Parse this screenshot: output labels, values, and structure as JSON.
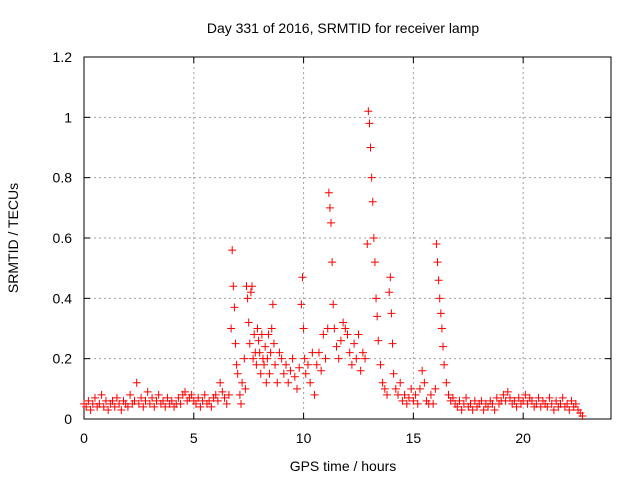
{
  "chart_data": {
    "type": "scatter",
    "title": "Day 331 of 2016, SRMTID for receiver lamp",
    "xlabel": "GPS time / hours",
    "ylabel": "SRMTID / TECUs",
    "xlim": [
      0,
      24
    ],
    "ylim": [
      0,
      1.2
    ],
    "xticks": [
      0,
      5,
      10,
      15,
      20
    ],
    "xtick_labels": [
      "0",
      "5",
      "10",
      "15",
      "20"
    ],
    "yticks": [
      0,
      0.2,
      0.4,
      0.6,
      0.8,
      1,
      1.2
    ],
    "ytick_labels": [
      "0",
      "0.2",
      "0.4",
      "0.6",
      "0.8",
      "1",
      "1.2"
    ],
    "grid": true,
    "marker": "+",
    "color": "#ff0000",
    "series": [
      {
        "name": "SRMTID",
        "points": [
          [
            0.0,
            0.05
          ],
          [
            0.1,
            0.04
          ],
          [
            0.2,
            0.06
          ],
          [
            0.3,
            0.03
          ],
          [
            0.4,
            0.05
          ],
          [
            0.5,
            0.07
          ],
          [
            0.6,
            0.04
          ],
          [
            0.7,
            0.05
          ],
          [
            0.8,
            0.08
          ],
          [
            0.9,
            0.04
          ],
          [
            1.0,
            0.06
          ],
          [
            1.1,
            0.03
          ],
          [
            1.2,
            0.05
          ],
          [
            1.3,
            0.06
          ],
          [
            1.4,
            0.04
          ],
          [
            1.5,
            0.07
          ],
          [
            1.6,
            0.05
          ],
          [
            1.7,
            0.03
          ],
          [
            1.8,
            0.06
          ],
          [
            1.9,
            0.05
          ],
          [
            2.0,
            0.04
          ],
          [
            2.1,
            0.08
          ],
          [
            2.2,
            0.05
          ],
          [
            2.3,
            0.06
          ],
          [
            2.4,
            0.12
          ],
          [
            2.5,
            0.05
          ],
          [
            2.6,
            0.07
          ],
          [
            2.7,
            0.04
          ],
          [
            2.8,
            0.06
          ],
          [
            2.9,
            0.09
          ],
          [
            3.0,
            0.05
          ],
          [
            3.1,
            0.07
          ],
          [
            3.2,
            0.04
          ],
          [
            3.3,
            0.06
          ],
          [
            3.4,
            0.08
          ],
          [
            3.5,
            0.05
          ],
          [
            3.6,
            0.06
          ],
          [
            3.7,
            0.04
          ],
          [
            3.8,
            0.07
          ],
          [
            3.9,
            0.05
          ],
          [
            4.0,
            0.06
          ],
          [
            4.1,
            0.04
          ],
          [
            4.2,
            0.05
          ],
          [
            4.3,
            0.07
          ],
          [
            4.4,
            0.05
          ],
          [
            4.5,
            0.08
          ],
          [
            4.6,
            0.09
          ],
          [
            4.7,
            0.06
          ],
          [
            4.8,
            0.07
          ],
          [
            4.9,
            0.08
          ],
          [
            5.0,
            0.06
          ],
          [
            5.1,
            0.05
          ],
          [
            5.2,
            0.07
          ],
          [
            5.3,
            0.04
          ],
          [
            5.4,
            0.06
          ],
          [
            5.5,
            0.08
          ],
          [
            5.6,
            0.05
          ],
          [
            5.7,
            0.06
          ],
          [
            5.8,
            0.04
          ],
          [
            5.9,
            0.07
          ],
          [
            6.0,
            0.08
          ],
          [
            6.1,
            0.06
          ],
          [
            6.2,
            0.12
          ],
          [
            6.3,
            0.09
          ],
          [
            6.4,
            0.07
          ],
          [
            6.5,
            0.05
          ],
          [
            6.6,
            0.08
          ],
          [
            6.7,
            0.3
          ],
          [
            6.75,
            0.56
          ],
          [
            6.8,
            0.44
          ],
          [
            6.85,
            0.37
          ],
          [
            6.9,
            0.25
          ],
          [
            6.95,
            0.18
          ],
          [
            7.0,
            0.15
          ],
          [
            7.1,
            0.08
          ],
          [
            7.15,
            0.05
          ],
          [
            7.2,
            0.12
          ],
          [
            7.3,
            0.2
          ],
          [
            7.35,
            0.1
          ],
          [
            7.4,
            0.44
          ],
          [
            7.45,
            0.4
          ],
          [
            7.5,
            0.32
          ],
          [
            7.55,
            0.25
          ],
          [
            7.6,
            0.42
          ],
          [
            7.65,
            0.44
          ],
          [
            7.7,
            0.2
          ],
          [
            7.75,
            0.28
          ],
          [
            7.8,
            0.22
          ],
          [
            7.85,
            0.18
          ],
          [
            7.9,
            0.3
          ],
          [
            7.95,
            0.26
          ],
          [
            8.0,
            0.22
          ],
          [
            8.05,
            0.15
          ],
          [
            8.1,
            0.28
          ],
          [
            8.15,
            0.2
          ],
          [
            8.2,
            0.18
          ],
          [
            8.25,
            0.24
          ],
          [
            8.3,
            0.12
          ],
          [
            8.35,
            0.2
          ],
          [
            8.4,
            0.28
          ],
          [
            8.45,
            0.15
          ],
          [
            8.5,
            0.22
          ],
          [
            8.55,
            0.3
          ],
          [
            8.6,
            0.38
          ],
          [
            8.65,
            0.25
          ],
          [
            8.7,
            0.18
          ],
          [
            8.8,
            0.12
          ],
          [
            8.9,
            0.22
          ],
          [
            9.0,
            0.2
          ],
          [
            9.1,
            0.15
          ],
          [
            9.2,
            0.18
          ],
          [
            9.3,
            0.12
          ],
          [
            9.4,
            0.16
          ],
          [
            9.5,
            0.2
          ],
          [
            9.6,
            0.14
          ],
          [
            9.7,
            0.1
          ],
          [
            9.8,
            0.17
          ],
          [
            9.9,
            0.38
          ],
          [
            9.95,
            0.47
          ],
          [
            10.0,
            0.3
          ],
          [
            10.05,
            0.2
          ],
          [
            10.1,
            0.15
          ],
          [
            10.2,
            0.18
          ],
          [
            10.3,
            0.12
          ],
          [
            10.4,
            0.22
          ],
          [
            10.5,
            0.08
          ],
          [
            10.6,
            0.18
          ],
          [
            10.7,
            0.22
          ],
          [
            10.8,
            0.16
          ],
          [
            10.9,
            0.28
          ],
          [
            11.0,
            0.2
          ],
          [
            11.1,
            0.3
          ],
          [
            11.15,
            0.75
          ],
          [
            11.2,
            0.7
          ],
          [
            11.25,
            0.65
          ],
          [
            11.3,
            0.52
          ],
          [
            11.35,
            0.38
          ],
          [
            11.4,
            0.3
          ],
          [
            11.5,
            0.24
          ],
          [
            11.6,
            0.2
          ],
          [
            11.7,
            0.26
          ],
          [
            11.8,
            0.32
          ],
          [
            11.9,
            0.3
          ],
          [
            12.0,
            0.28
          ],
          [
            12.1,
            0.22
          ],
          [
            12.2,
            0.18
          ],
          [
            12.3,
            0.25
          ],
          [
            12.4,
            0.2
          ],
          [
            12.5,
            0.28
          ],
          [
            12.6,
            0.16
          ],
          [
            12.7,
            0.22
          ],
          [
            12.8,
            0.2
          ],
          [
            12.9,
            0.58
          ],
          [
            12.95,
            1.02
          ],
          [
            13.0,
            0.98
          ],
          [
            13.05,
            0.9
          ],
          [
            13.1,
            0.8
          ],
          [
            13.15,
            0.72
          ],
          [
            13.2,
            0.6
          ],
          [
            13.25,
            0.52
          ],
          [
            13.3,
            0.4
          ],
          [
            13.35,
            0.34
          ],
          [
            13.4,
            0.26
          ],
          [
            13.5,
            0.18
          ],
          [
            13.6,
            0.12
          ],
          [
            13.7,
            0.1
          ],
          [
            13.8,
            0.08
          ],
          [
            13.9,
            0.42
          ],
          [
            13.95,
            0.47
          ],
          [
            14.0,
            0.35
          ],
          [
            14.05,
            0.25
          ],
          [
            14.1,
            0.15
          ],
          [
            14.2,
            0.1
          ],
          [
            14.3,
            0.08
          ],
          [
            14.4,
            0.12
          ],
          [
            14.5,
            0.06
          ],
          [
            14.6,
            0.08
          ],
          [
            14.7,
            0.05
          ],
          [
            14.8,
            0.07
          ],
          [
            14.9,
            0.1
          ],
          [
            15.0,
            0.06
          ],
          [
            15.1,
            0.08
          ],
          [
            15.2,
            0.05
          ],
          [
            15.3,
            0.1
          ],
          [
            15.4,
            0.16
          ],
          [
            15.5,
            0.12
          ],
          [
            15.6,
            0.06
          ],
          [
            15.7,
            0.05
          ],
          [
            15.8,
            0.08
          ],
          [
            15.9,
            0.05
          ],
          [
            16.0,
            0.1
          ],
          [
            16.05,
            0.58
          ],
          [
            16.1,
            0.52
          ],
          [
            16.15,
            0.46
          ],
          [
            16.2,
            0.4
          ],
          [
            16.25,
            0.35
          ],
          [
            16.3,
            0.3
          ],
          [
            16.35,
            0.24
          ],
          [
            16.4,
            0.18
          ],
          [
            16.5,
            0.12
          ],
          [
            16.6,
            0.08
          ],
          [
            16.7,
            0.06
          ],
          [
            16.8,
            0.07
          ],
          [
            16.9,
            0.05
          ],
          [
            17.0,
            0.04
          ],
          [
            17.1,
            0.06
          ],
          [
            17.2,
            0.03
          ],
          [
            17.3,
            0.05
          ],
          [
            17.4,
            0.07
          ],
          [
            17.5,
            0.04
          ],
          [
            17.6,
            0.05
          ],
          [
            17.7,
            0.03
          ],
          [
            17.8,
            0.06
          ],
          [
            17.9,
            0.04
          ],
          [
            18.0,
            0.05
          ],
          [
            18.1,
            0.06
          ],
          [
            18.2,
            0.03
          ],
          [
            18.3,
            0.05
          ],
          [
            18.4,
            0.04
          ],
          [
            18.5,
            0.06
          ],
          [
            18.6,
            0.05
          ],
          [
            18.7,
            0.03
          ],
          [
            18.8,
            0.07
          ],
          [
            18.9,
            0.05
          ],
          [
            19.0,
            0.06
          ],
          [
            19.1,
            0.08
          ],
          [
            19.2,
            0.06
          ],
          [
            19.3,
            0.09
          ],
          [
            19.4,
            0.07
          ],
          [
            19.5,
            0.05
          ],
          [
            19.6,
            0.06
          ],
          [
            19.7,
            0.04
          ],
          [
            19.8,
            0.07
          ],
          [
            19.9,
            0.05
          ],
          [
            20.0,
            0.06
          ],
          [
            20.1,
            0.08
          ],
          [
            20.2,
            0.05
          ],
          [
            20.3,
            0.07
          ],
          [
            20.4,
            0.06
          ],
          [
            20.5,
            0.04
          ],
          [
            20.6,
            0.05
          ],
          [
            20.7,
            0.07
          ],
          [
            20.8,
            0.04
          ],
          [
            20.9,
            0.06
          ],
          [
            21.0,
            0.05
          ],
          [
            21.1,
            0.04
          ],
          [
            21.2,
            0.07
          ],
          [
            21.3,
            0.05
          ],
          [
            21.4,
            0.03
          ],
          [
            21.5,
            0.06
          ],
          [
            21.6,
            0.04
          ],
          [
            21.7,
            0.05
          ],
          [
            21.8,
            0.07
          ],
          [
            21.9,
            0.04
          ],
          [
            22.0,
            0.05
          ],
          [
            22.1,
            0.03
          ],
          [
            22.2,
            0.06
          ],
          [
            22.3,
            0.04
          ],
          [
            22.4,
            0.05
          ],
          [
            22.5,
            0.03
          ],
          [
            22.6,
            0.02
          ],
          [
            22.7,
            0.01
          ]
        ]
      }
    ]
  }
}
